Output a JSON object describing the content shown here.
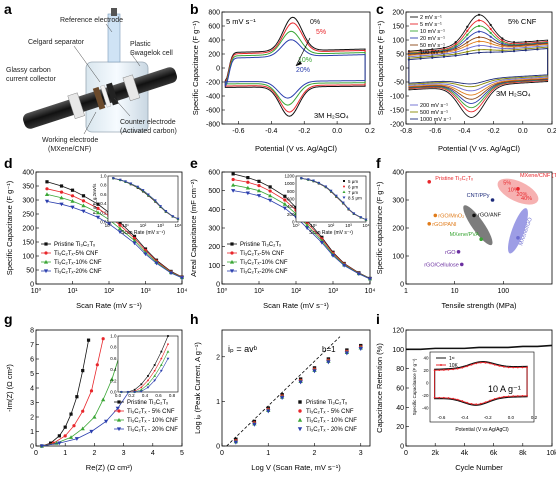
{
  "panel_letters": [
    "a",
    "b",
    "c",
    "d",
    "e",
    "f",
    "g",
    "h",
    "i"
  ],
  "colors": {
    "black": "#111111",
    "red": "#e8262b",
    "green": "#3aa635",
    "blue": "#2b3fae",
    "gray": "#8a8a8a",
    "pink": "#f08a8a",
    "navy": "#1d2b7a",
    "purple": "#6b6bd0",
    "orange": "#e07b1a",
    "brown": "#8b4513"
  },
  "panel_a": {
    "labels": {
      "reference": "Reference electrode",
      "plastic": "Plastic",
      "swagelok": "Swagelok cell",
      "celgard": "Celgard separator",
      "glassy1": "Glassy carbon",
      "glassy2": "current collector",
      "working1": "Working electrode",
      "working2": "(MXene/CNF)",
      "counter1": "Counter electrode",
      "counter2": "(Activated carbon)"
    }
  },
  "chart_data": [
    {
      "panel": "b",
      "type": "line",
      "xlabel": "Potential (V vs. Ag/AgCl)",
      "ylabel": "Specific Capacitance (F g⁻¹)",
      "xlim": [
        -0.7,
        0.2
      ],
      "ylim": [
        -800,
        800
      ],
      "xticks": [
        -0.6,
        -0.4,
        -0.2,
        0.0,
        0.2
      ],
      "yticks": [
        -800,
        -600,
        -400,
        -200,
        0,
        200,
        400,
        600,
        800
      ],
      "annotations": [
        "5 mV s⁻¹",
        "3M H₂SO₄"
      ],
      "series": [
        {
          "name": "0%",
          "color": "#111111",
          "peak_x": -0.27,
          "peak_top": 700,
          "peak_bottom": -680,
          "base_top": 220,
          "base_bottom": -260
        },
        {
          "name": "5%",
          "color": "#e8262b",
          "peak_x": -0.27,
          "peak_top": 620,
          "peak_bottom": -620,
          "base_top": 200,
          "base_bottom": -240
        },
        {
          "name": "10%",
          "color": "#3aa635",
          "peak_x": -0.28,
          "peak_top": 500,
          "peak_bottom": -520,
          "base_top": 170,
          "base_bottom": -210
        },
        {
          "name": "20%",
          "color": "#2b3fae",
          "peak_x": -0.28,
          "peak_top": 380,
          "peak_bottom": -420,
          "base_top": 140,
          "base_bottom": -180
        }
      ]
    },
    {
      "panel": "c",
      "type": "line",
      "xlabel": "Potential (V vs. Ag/AgCl)",
      "ylabel": "Specific Capacitance (F g⁻¹)",
      "xlim": [
        -0.8,
        0.2
      ],
      "ylim": [
        -200,
        200
      ],
      "xticks": [
        -0.8,
        -0.6,
        -0.4,
        -0.2,
        0.0,
        0.2
      ],
      "yticks": [
        -200,
        -150,
        -100,
        -50,
        0,
        50,
        100,
        150,
        200
      ],
      "annotations": [
        "5% CNF",
        "3M H₂SO₄"
      ],
      "legend_top": [
        "2 mV s⁻¹",
        "5 mV s⁻¹",
        "10 mV s⁻¹",
        "20 mV s⁻¹",
        "50 mV s⁻¹",
        "100 mV s⁻¹"
      ],
      "legend_bottom": [
        "200 mV s⁻¹",
        "500 mV s⁻¹",
        "1000 mV s⁻¹"
      ],
      "series": [
        {
          "name": "2 mV s⁻¹",
          "color": "#111111",
          "peak_top": 170,
          "peak_bottom": -160,
          "base": 60
        },
        {
          "name": "5 mV s⁻¹",
          "color": "#e8262b",
          "peak_top": 150,
          "peak_bottom": -140,
          "base": 55
        },
        {
          "name": "10 mV s⁻¹",
          "color": "#3aa635",
          "peak_top": 130,
          "peak_bottom": -125,
          "base": 52
        },
        {
          "name": "20 mV s⁻¹",
          "color": "#2b3fae",
          "peak_top": 110,
          "peak_bottom": -110,
          "base": 50
        },
        {
          "name": "50 mV s⁻¹",
          "color": "#8b4513",
          "peak_top": 90,
          "peak_bottom": -95,
          "base": 48
        },
        {
          "name": "100 mV s⁻¹",
          "color": "#e07b1a",
          "peak_top": 75,
          "peak_bottom": -80,
          "base": 45
        },
        {
          "name": "200 mV s⁻¹",
          "color": "#6b6bd0",
          "peak_top": 60,
          "peak_bottom": -65,
          "base": 40
        },
        {
          "name": "500 mV s⁻¹",
          "color": "#888800",
          "peak_top": 45,
          "peak_bottom": -50,
          "base": 35
        },
        {
          "name": "1000 mV s⁻¹",
          "color": "#1d2b7a",
          "peak_top": 35,
          "peak_bottom": -40,
          "base": 30
        }
      ]
    },
    {
      "panel": "d",
      "type": "line",
      "xlabel": "Scan Rate (mV s⁻¹)",
      "ylabel": "Specific Capacitance (F g⁻¹)",
      "xscale": "log",
      "xlim": [
        1,
        10000
      ],
      "ylim": [
        0,
        400
      ],
      "yticks": [
        0,
        50,
        100,
        150,
        200,
        250,
        300,
        350,
        400
      ],
      "x": [
        2,
        5,
        10,
        20,
        50,
        100,
        200,
        500,
        1000,
        2000,
        5000,
        10000
      ],
      "series": [
        {
          "name": "Pristine Ti₃C₂Tₓ",
          "color": "#111111",
          "marker": "square",
          "values": [
            365,
            350,
            335,
            315,
            285,
            255,
            220,
            170,
            125,
            85,
            45,
            25
          ]
        },
        {
          "name": "Ti₃C₂Tₓ-5% CNF",
          "color": "#e8262b",
          "marker": "circle",
          "values": [
            340,
            328,
            315,
            297,
            270,
            243,
            210,
            163,
            120,
            82,
            43,
            24
          ]
        },
        {
          "name": "Ti₃C₂Tₓ-10% CNF",
          "color": "#3aa635",
          "marker": "triangle",
          "values": [
            320,
            308,
            296,
            280,
            255,
            230,
            198,
            155,
            113,
            78,
            41,
            23
          ]
        },
        {
          "name": "Ti₃C₂Tₓ-20% CNF",
          "color": "#2b3fae",
          "marker": "triangle-down",
          "values": [
            295,
            285,
            274,
            260,
            238,
            215,
            186,
            146,
            107,
            74,
            39,
            22
          ]
        }
      ],
      "inset": {
        "xlabel": "Scan Rate (mV s⁻¹)",
        "ylabel": "F_g/F_g,2mV/s",
        "xticks": [
          "10⁰",
          "10¹",
          "10²",
          "10³",
          "10⁴"
        ],
        "yticks": [
          "0.0",
          "0.2",
          "0.4",
          "0.6",
          "0.8",
          "1.0"
        ]
      }
    },
    {
      "panel": "e",
      "type": "line",
      "xlabel": "Scan Rate (mV s⁻¹)",
      "ylabel": "Areal Capacitance (mF cm⁻²)",
      "xscale": "log",
      "xlim": [
        1,
        10000
      ],
      "ylim": [
        0,
        600
      ],
      "yticks": [
        0,
        100,
        200,
        300,
        400,
        500,
        600
      ],
      "x": [
        2,
        5,
        10,
        20,
        50,
        100,
        200,
        500,
        1000,
        2000,
        5000,
        10000
      ],
      "series": [
        {
          "name": "Pristine Ti₃C₂Tₓ",
          "color": "#111111",
          "marker": "square",
          "values": [
            590,
            570,
            550,
            520,
            470,
            410,
            340,
            250,
            170,
            110,
            60,
            30
          ]
        },
        {
          "name": "Ti₃C₂Tₓ-5% CNF",
          "color": "#e8262b",
          "marker": "circle",
          "values": [
            560,
            545,
            527,
            498,
            450,
            395,
            328,
            242,
            165,
            107,
            58,
            29
          ]
        },
        {
          "name": "Ti₃C₂Tₓ-10% CNF",
          "color": "#3aa635",
          "marker": "triangle",
          "values": [
            530,
            515,
            500,
            473,
            428,
            376,
            314,
            232,
            158,
            103,
            56,
            28
          ]
        },
        {
          "name": "Ti₃C₂Tₓ-20% CNF",
          "color": "#2b3fae",
          "marker": "triangle-down",
          "values": [
            500,
            487,
            473,
            448,
            406,
            358,
            300,
            222,
            152,
            99,
            54,
            27
          ]
        }
      ],
      "inset": {
        "xlabel": "Scan Rate (mV s⁻¹)",
        "legend": [
          "5 μm",
          "6 μm",
          "7 μm",
          "8.5 μm"
        ],
        "yticks": [
          "0",
          "200",
          "400",
          "600",
          "800",
          "1000",
          "1200"
        ],
        "xticks": [
          "10⁰",
          "10¹",
          "10²",
          "10³",
          "10⁴"
        ]
      }
    },
    {
      "panel": "f",
      "type": "scatter",
      "xlabel": "Tensile strength (MPa)",
      "ylabel": "Specific capacitance (F g⁻¹)",
      "xscale": "log",
      "xlim": [
        1,
        1000
      ],
      "ylim": [
        0,
        400
      ],
      "yticks": [
        0,
        100,
        200,
        300,
        400
      ],
      "xticks": [
        "1",
        "10",
        "100"
      ],
      "points": [
        {
          "label": "Pristine Ti₃C₂Tₓ",
          "x": 3,
          "y": 365,
          "color": "#e8262b"
        },
        {
          "label": "CNT/PPy",
          "x": 60,
          "y": 300,
          "color": "#1d2b7a"
        },
        {
          "label": "rGO/MnO₂",
          "x": 4,
          "y": 245,
          "color": "#e07b1a"
        },
        {
          "label": "rGO/PANI",
          "x": 3,
          "y": 215,
          "color": "#e07b1a"
        },
        {
          "label": "rGO/ANF",
          "x": 25,
          "y": 245,
          "color": "#111111"
        },
        {
          "label": "MXene/PVA",
          "x": 35,
          "y": 160,
          "color": "#3aa635"
        },
        {
          "label": "rGO",
          "x": 12,
          "y": 115,
          "color": "#6b2fa0"
        },
        {
          "label": "rGO/Cellulose",
          "x": 14,
          "y": 70,
          "color": "#6b2fa0"
        },
        {
          "label": "MXene/rGO",
          "x": 200,
          "y": 165,
          "color": "#6b6bd0"
        },
        {
          "label": "MXene/CNF (This Work)",
          "x": 200,
          "y": 340,
          "color": "#e8262b"
        }
      ],
      "region_labels": [
        "5%",
        "10%",
        "20%",
        "40%"
      ]
    },
    {
      "panel": "g",
      "type": "line",
      "xlabel": "Re(Z) (Ω cm²)",
      "ylabel": "-Im(Z) (Ω cm²)",
      "xlim": [
        0,
        5
      ],
      "ylim": [
        0,
        8
      ],
      "xticks": [
        0,
        1,
        2,
        3,
        4,
        5
      ],
      "yticks": [
        0,
        1,
        2,
        3,
        4,
        5,
        6,
        7,
        8
      ],
      "series": [
        {
          "name": "Pristine Ti₃C₂Tₓ",
          "color": "#111111",
          "marker": "square",
          "x": [
            0.2,
            0.5,
            0.8,
            1.0,
            1.2,
            1.4,
            1.6,
            1.8
          ],
          "values": [
            0.0,
            0.2,
            0.7,
            1.3,
            2.2,
            3.4,
            5.2,
            7.3
          ]
        },
        {
          "name": "Ti₃C₂Tₓ - 5% CNF",
          "color": "#e8262b",
          "marker": "circle",
          "x": [
            0.2,
            0.6,
            1.0,
            1.3,
            1.6,
            1.9,
            2.1,
            2.3
          ],
          "values": [
            0.0,
            0.2,
            0.7,
            1.4,
            2.4,
            3.8,
            5.6,
            7.4
          ]
        },
        {
          "name": "Ti₃C₂Tₓ - 10% CNF",
          "color": "#3aa635",
          "marker": "triangle",
          "x": [
            0.2,
            0.7,
            1.2,
            1.6,
            2.0,
            2.3,
            2.6,
            2.9
          ],
          "values": [
            0.0,
            0.2,
            0.6,
            1.2,
            2.0,
            3.2,
            4.6,
            6.5
          ]
        },
        {
          "name": "Ti₃C₂Tₓ - 20% CNF",
          "color": "#2b3fae",
          "marker": "triangle-down",
          "x": [
            0.2,
            0.8,
            1.4,
            1.9,
            2.4,
            2.8,
            3.2,
            3.6
          ],
          "values": [
            0.0,
            0.2,
            0.5,
            1.0,
            1.7,
            2.6,
            3.8,
            5.4
          ]
        }
      ],
      "inset": {
        "xticks": [
          "0.0",
          "0.2",
          "0.4",
          "0.6",
          "0.8"
        ],
        "yticks": [
          "0.0",
          "0.2",
          "0.4",
          "0.6",
          "0.8",
          "1.0"
        ]
      }
    },
    {
      "panel": "h",
      "type": "scatter",
      "xlabel": "Log V (Scan Rate, mV s⁻¹)",
      "ylabel": "Log iₚ (Peak Current, A g⁻¹)",
      "xlim": [
        0,
        3.2
      ],
      "ylim": [
        0,
        2.6
      ],
      "xticks": [
        0,
        1,
        2,
        3
      ],
      "yticks": [
        0,
        1,
        2
      ],
      "annotations": [
        "iₚ = avᵇ",
        "b=1"
      ],
      "x": [
        0.3,
        0.7,
        1.0,
        1.3,
        1.7,
        2.0,
        2.3,
        2.7,
        3.0
      ],
      "series": [
        {
          "name": "Pristine Ti₃C₂Tₓ",
          "color": "#111111",
          "marker": "square",
          "values": [
            0.15,
            0.55,
            0.85,
            1.15,
            1.5,
            1.75,
            1.95,
            2.15,
            2.25
          ]
        },
        {
          "name": "Ti₃C₂Tₓ - 5% CNF",
          "color": "#e8262b",
          "marker": "circle",
          "values": [
            0.12,
            0.52,
            0.82,
            1.12,
            1.47,
            1.72,
            1.92,
            2.12,
            2.22
          ]
        },
        {
          "name": "Ti₃C₂Tₓ - 10% CNF",
          "color": "#3aa635",
          "marker": "triangle",
          "values": [
            0.1,
            0.5,
            0.8,
            1.1,
            1.45,
            1.7,
            1.9,
            2.1,
            2.2
          ]
        },
        {
          "name": "Ti₃C₂Tₓ - 20% CNF",
          "color": "#2b3fae",
          "marker": "triangle-down",
          "values": [
            0.08,
            0.48,
            0.78,
            1.08,
            1.43,
            1.68,
            1.88,
            2.08,
            2.18
          ]
        }
      ]
    },
    {
      "panel": "i",
      "type": "line",
      "xlabel": "Cycle Number",
      "ylabel": "Capacitance Retention (%)",
      "xlim": [
        0,
        10000
      ],
      "ylim": [
        0,
        120
      ],
      "xticks": [
        "0",
        "2k",
        "4k",
        "6k",
        "8k",
        "10k"
      ],
      "yticks": [
        0,
        20,
        40,
        60,
        80,
        100,
        120
      ],
      "series": [
        {
          "name": "retention",
          "color": "#111111",
          "x": [
            0,
            1000,
            2000,
            3000,
            4000,
            5000,
            6000,
            7000,
            8000,
            9000,
            10000
          ],
          "values": [
            100,
            100,
            101,
            101,
            101,
            102,
            102,
            102,
            103,
            103,
            104
          ]
        }
      ],
      "inset": {
        "xlabel": "Potential (V vs Ag/AgCl)",
        "ylabel": "Specific Capacitance (F g⁻¹)",
        "annotation": "10 A g⁻¹",
        "legend": [
          "1ˢᵗ",
          "10K"
        ],
        "xticks": [
          "-0.6",
          "-0.4",
          "-0.2",
          "0.0",
          "0.2"
        ],
        "yticks": [
          "-40",
          "-20",
          "0",
          "20",
          "40"
        ]
      }
    }
  ]
}
